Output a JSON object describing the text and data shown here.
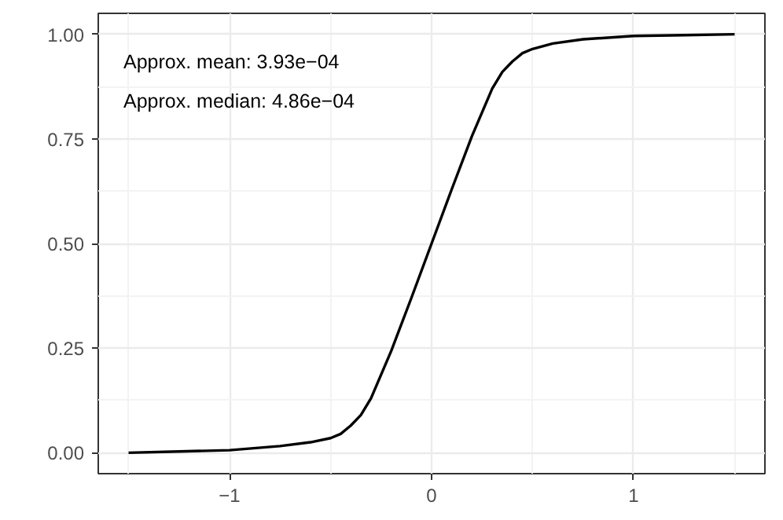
{
  "chart_data": {
    "type": "line",
    "x": [
      -1.5,
      -1.25,
      -1.0,
      -0.75,
      -0.6,
      -0.5,
      -0.45,
      -0.4,
      -0.35,
      -0.3,
      -0.2,
      -0.1,
      0.0,
      0.1,
      0.2,
      0.3,
      0.35,
      0.4,
      0.45,
      0.5,
      0.6,
      0.75,
      1.0,
      1.25,
      1.5
    ],
    "series": [
      {
        "color": "#000000",
        "values": [
          0.0,
          0.003,
          0.006,
          0.016,
          0.025,
          0.035,
          0.045,
          0.065,
          0.09,
          0.13,
          0.243,
          0.37,
          0.5,
          0.63,
          0.757,
          0.87,
          0.91,
          0.935,
          0.955,
          0.965,
          0.978,
          0.988,
          0.996,
          0.998,
          1.0
        ]
      }
    ],
    "xlim": [
      -1.65,
      1.65
    ],
    "ylim": [
      -0.05,
      1.05
    ],
    "xticks": [
      {
        "value": -1,
        "label": "−1"
      },
      0,
      1
    ],
    "yticks": [
      {
        "value": 0,
        "label": "0.00"
      },
      {
        "value": 0.25,
        "label": "0.25"
      },
      {
        "value": 0.5,
        "label": "0.50"
      },
      {
        "value": 0.75,
        "label": "0.75"
      },
      {
        "value": 1,
        "label": "1.00"
      }
    ],
    "grid": true,
    "marker": "none",
    "line_style": "solid",
    "annotations": [
      "Approx. mean: 3.93e−04",
      "Approx. median: 4.86e−04"
    ]
  }
}
